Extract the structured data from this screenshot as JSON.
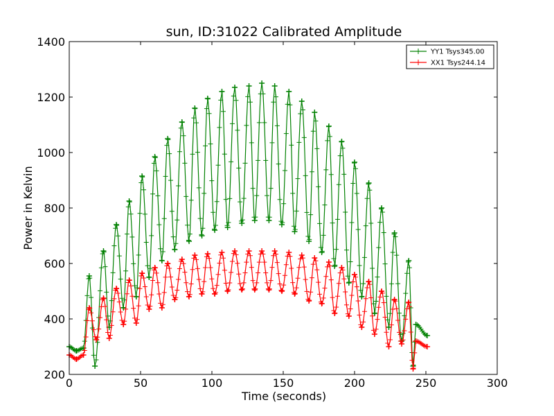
{
  "chart_data": {
    "type": "line",
    "title": "sun, ID:31022 Calibrated Amplitude",
    "xlabel": "Time (seconds)",
    "ylabel": "Power in Kelvin",
    "xlim": [
      0,
      300
    ],
    "ylim": [
      200,
      1400
    ],
    "xticks": [
      0,
      50,
      100,
      150,
      200,
      250,
      300
    ],
    "yticks": [
      200,
      400,
      600,
      800,
      1000,
      1200,
      1400
    ],
    "legend_position": "top-right",
    "grid": false,
    "marker": "+",
    "series": [
      {
        "name": "YY1 Tsys345.00",
        "color": "#008000",
        "x_start": 0,
        "x_end": 251,
        "baseline_start": 295,
        "peaks": [
          {
            "x": 0,
            "y": 300
          },
          {
            "x": 5,
            "y": 285
          },
          {
            "x": 10,
            "y": 295
          },
          {
            "x": 14,
            "y": 555
          },
          {
            "x": 18,
            "y": 230
          },
          {
            "x": 24,
            "y": 645
          },
          {
            "x": 28,
            "y": 370
          },
          {
            "x": 33,
            "y": 740
          },
          {
            "x": 38,
            "y": 440
          },
          {
            "x": 42,
            "y": 825
          },
          {
            "x": 47,
            "y": 480
          },
          {
            "x": 51,
            "y": 915
          },
          {
            "x": 56,
            "y": 550
          },
          {
            "x": 60,
            "y": 985
          },
          {
            "x": 65,
            "y": 610
          },
          {
            "x": 69,
            "y": 1050
          },
          {
            "x": 74,
            "y": 650
          },
          {
            "x": 79,
            "y": 1110
          },
          {
            "x": 84,
            "y": 680
          },
          {
            "x": 88,
            "y": 1160
          },
          {
            "x": 93,
            "y": 700
          },
          {
            "x": 97,
            "y": 1195
          },
          {
            "x": 102,
            "y": 720
          },
          {
            "x": 107,
            "y": 1220
          },
          {
            "x": 111,
            "y": 730
          },
          {
            "x": 116,
            "y": 1235
          },
          {
            "x": 121,
            "y": 745
          },
          {
            "x": 126,
            "y": 1240
          },
          {
            "x": 130,
            "y": 755
          },
          {
            "x": 135,
            "y": 1250
          },
          {
            "x": 140,
            "y": 755
          },
          {
            "x": 144,
            "y": 1240
          },
          {
            "x": 149,
            "y": 740
          },
          {
            "x": 154,
            "y": 1220
          },
          {
            "x": 158,
            "y": 715
          },
          {
            "x": 163,
            "y": 1185
          },
          {
            "x": 168,
            "y": 680
          },
          {
            "x": 172,
            "y": 1145
          },
          {
            "x": 177,
            "y": 640
          },
          {
            "x": 182,
            "y": 1095
          },
          {
            "x": 186,
            "y": 590
          },
          {
            "x": 191,
            "y": 1040
          },
          {
            "x": 196,
            "y": 530
          },
          {
            "x": 200,
            "y": 965
          },
          {
            "x": 205,
            "y": 480
          },
          {
            "x": 210,
            "y": 890
          },
          {
            "x": 214,
            "y": 420
          },
          {
            "x": 219,
            "y": 800
          },
          {
            "x": 224,
            "y": 370
          },
          {
            "x": 228,
            "y": 710
          },
          {
            "x": 233,
            "y": 320
          },
          {
            "x": 238,
            "y": 610
          },
          {
            "x": 241,
            "y": 230
          },
          {
            "x": 243,
            "y": 380
          },
          {
            "x": 251,
            "y": 340
          }
        ]
      },
      {
        "name": "XX1 Tsys244.14",
        "color": "#ff0000",
        "x_start": 0,
        "x_end": 251,
        "baseline_start": 270,
        "peaks": [
          {
            "x": 0,
            "y": 270
          },
          {
            "x": 5,
            "y": 255
          },
          {
            "x": 10,
            "y": 270
          },
          {
            "x": 14,
            "y": 440
          },
          {
            "x": 19,
            "y": 325
          },
          {
            "x": 24,
            "y": 475
          },
          {
            "x": 28,
            "y": 330
          },
          {
            "x": 33,
            "y": 510
          },
          {
            "x": 38,
            "y": 380
          },
          {
            "x": 42,
            "y": 540
          },
          {
            "x": 47,
            "y": 385
          },
          {
            "x": 51,
            "y": 565
          },
          {
            "x": 56,
            "y": 435
          },
          {
            "x": 60,
            "y": 585
          },
          {
            "x": 65,
            "y": 440
          },
          {
            "x": 69,
            "y": 600
          },
          {
            "x": 74,
            "y": 470
          },
          {
            "x": 79,
            "y": 615
          },
          {
            "x": 84,
            "y": 480
          },
          {
            "x": 88,
            "y": 630
          },
          {
            "x": 93,
            "y": 490
          },
          {
            "x": 97,
            "y": 635
          },
          {
            "x": 102,
            "y": 490
          },
          {
            "x": 107,
            "y": 640
          },
          {
            "x": 111,
            "y": 500
          },
          {
            "x": 116,
            "y": 645
          },
          {
            "x": 121,
            "y": 505
          },
          {
            "x": 126,
            "y": 645
          },
          {
            "x": 130,
            "y": 505
          },
          {
            "x": 135,
            "y": 645
          },
          {
            "x": 140,
            "y": 505
          },
          {
            "x": 144,
            "y": 645
          },
          {
            "x": 149,
            "y": 500
          },
          {
            "x": 154,
            "y": 640
          },
          {
            "x": 158,
            "y": 490
          },
          {
            "x": 163,
            "y": 630
          },
          {
            "x": 168,
            "y": 465
          },
          {
            "x": 172,
            "y": 620
          },
          {
            "x": 177,
            "y": 455
          },
          {
            "x": 182,
            "y": 605
          },
          {
            "x": 186,
            "y": 420
          },
          {
            "x": 191,
            "y": 585
          },
          {
            "x": 196,
            "y": 410
          },
          {
            "x": 200,
            "y": 560
          },
          {
            "x": 205,
            "y": 370
          },
          {
            "x": 210,
            "y": 535
          },
          {
            "x": 214,
            "y": 345
          },
          {
            "x": 219,
            "y": 500
          },
          {
            "x": 224,
            "y": 300
          },
          {
            "x": 228,
            "y": 470
          },
          {
            "x": 233,
            "y": 310
          },
          {
            "x": 238,
            "y": 460
          },
          {
            "x": 241,
            "y": 220
          },
          {
            "x": 243,
            "y": 320
          },
          {
            "x": 251,
            "y": 300
          }
        ]
      }
    ]
  }
}
